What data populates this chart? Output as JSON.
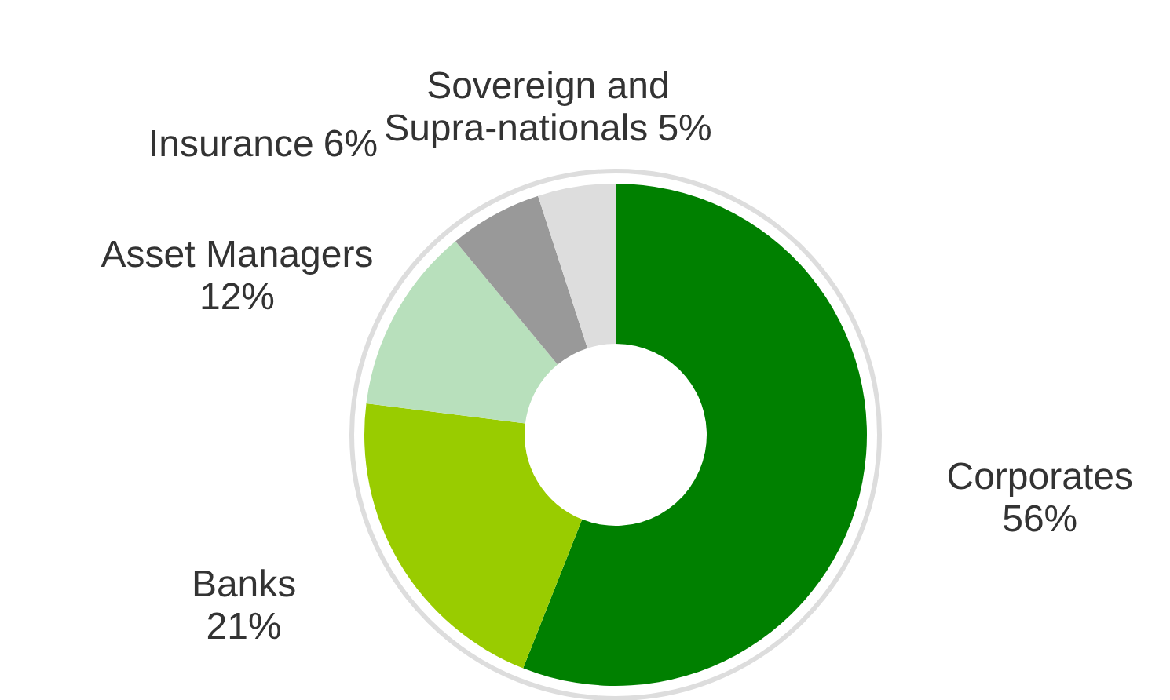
{
  "chart_data": {
    "type": "donut",
    "categories": [
      "Corporates",
      "Banks",
      "Asset Managers",
      "Insurance",
      "Sovereign and Supra-nationals"
    ],
    "values": [
      56,
      21,
      12,
      6,
      5
    ],
    "colors": [
      "#008000",
      "#99cc00",
      "#b8e0bc",
      "#999999",
      "#dddddd"
    ],
    "value_labels": [
      "56%",
      "21%",
      "12%",
      "6%",
      "5%"
    ]
  }
}
